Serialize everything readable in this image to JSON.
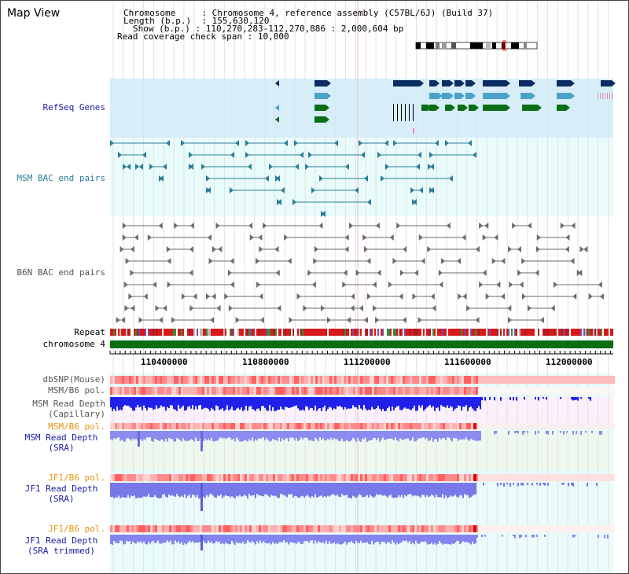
{
  "header": {
    "title": "Map View",
    "chromosome_label": "Chromosome",
    "chromosome_value": "Chromosome 4, reference assembly (C57BL/6J) (Build 37)",
    "length_label": "Length (b.p.)",
    "length_value": "155,630,120",
    "show_label": "Show (b.p.)",
    "show_value": "110,270,283-112,270,886 : 2,000,604 bp",
    "read_cov_label": "Read coverage check span",
    "read_cov_value": "10,000"
  },
  "tracks": {
    "refseq": "RefSeq Genes",
    "msm_bac": "MSM BAC end pairs",
    "b6n_bac": "B6N BAC end pairs",
    "repeat": "Repeat",
    "chromosome": "chromosome 4",
    "dbsnp": "dbSNP(Mouse)",
    "msm_b6_pol_1": "MSM/B6 pol.",
    "msm_depth_cap_1": "MSM Read Depth",
    "msm_depth_cap_2": "(Capillary)",
    "msm_b6_pol_2": "MSM/B6 pol.",
    "msm_depth_sra_1": "MSM Read Depth",
    "msm_depth_sra_2": "(SRA)",
    "jf1_b6_pol_1": "JF1/B6 pol.",
    "jf1_depth_sra_1": "JF1 Read Depth",
    "jf1_depth_sra_2": "(SRA)",
    "jf1_b6_pol_2": "JF1/B6 pol.",
    "jf1_depth_trim_1": "JF1 Read Depth",
    "jf1_depth_trim_2": "(SRA trimmed)"
  },
  "axis": {
    "ticks": [
      "110400000",
      "110800000",
      "111200000",
      "111600000",
      "112000000"
    ]
  },
  "colors": {
    "refseq_bg": "#d6eefa",
    "panel_bg": "#e9fbfb",
    "navy": "#0c2d62",
    "teal": "#4ba2c8",
    "green": "#0b6e16",
    "bac_msm": "#2a7e97",
    "bac_b6n": "#6b6b6b",
    "chromosome": "#0b6e16",
    "label_blue": "#1a1aa0",
    "label_teal": "#2a7e97",
    "label_orange": "#e8920e"
  }
}
